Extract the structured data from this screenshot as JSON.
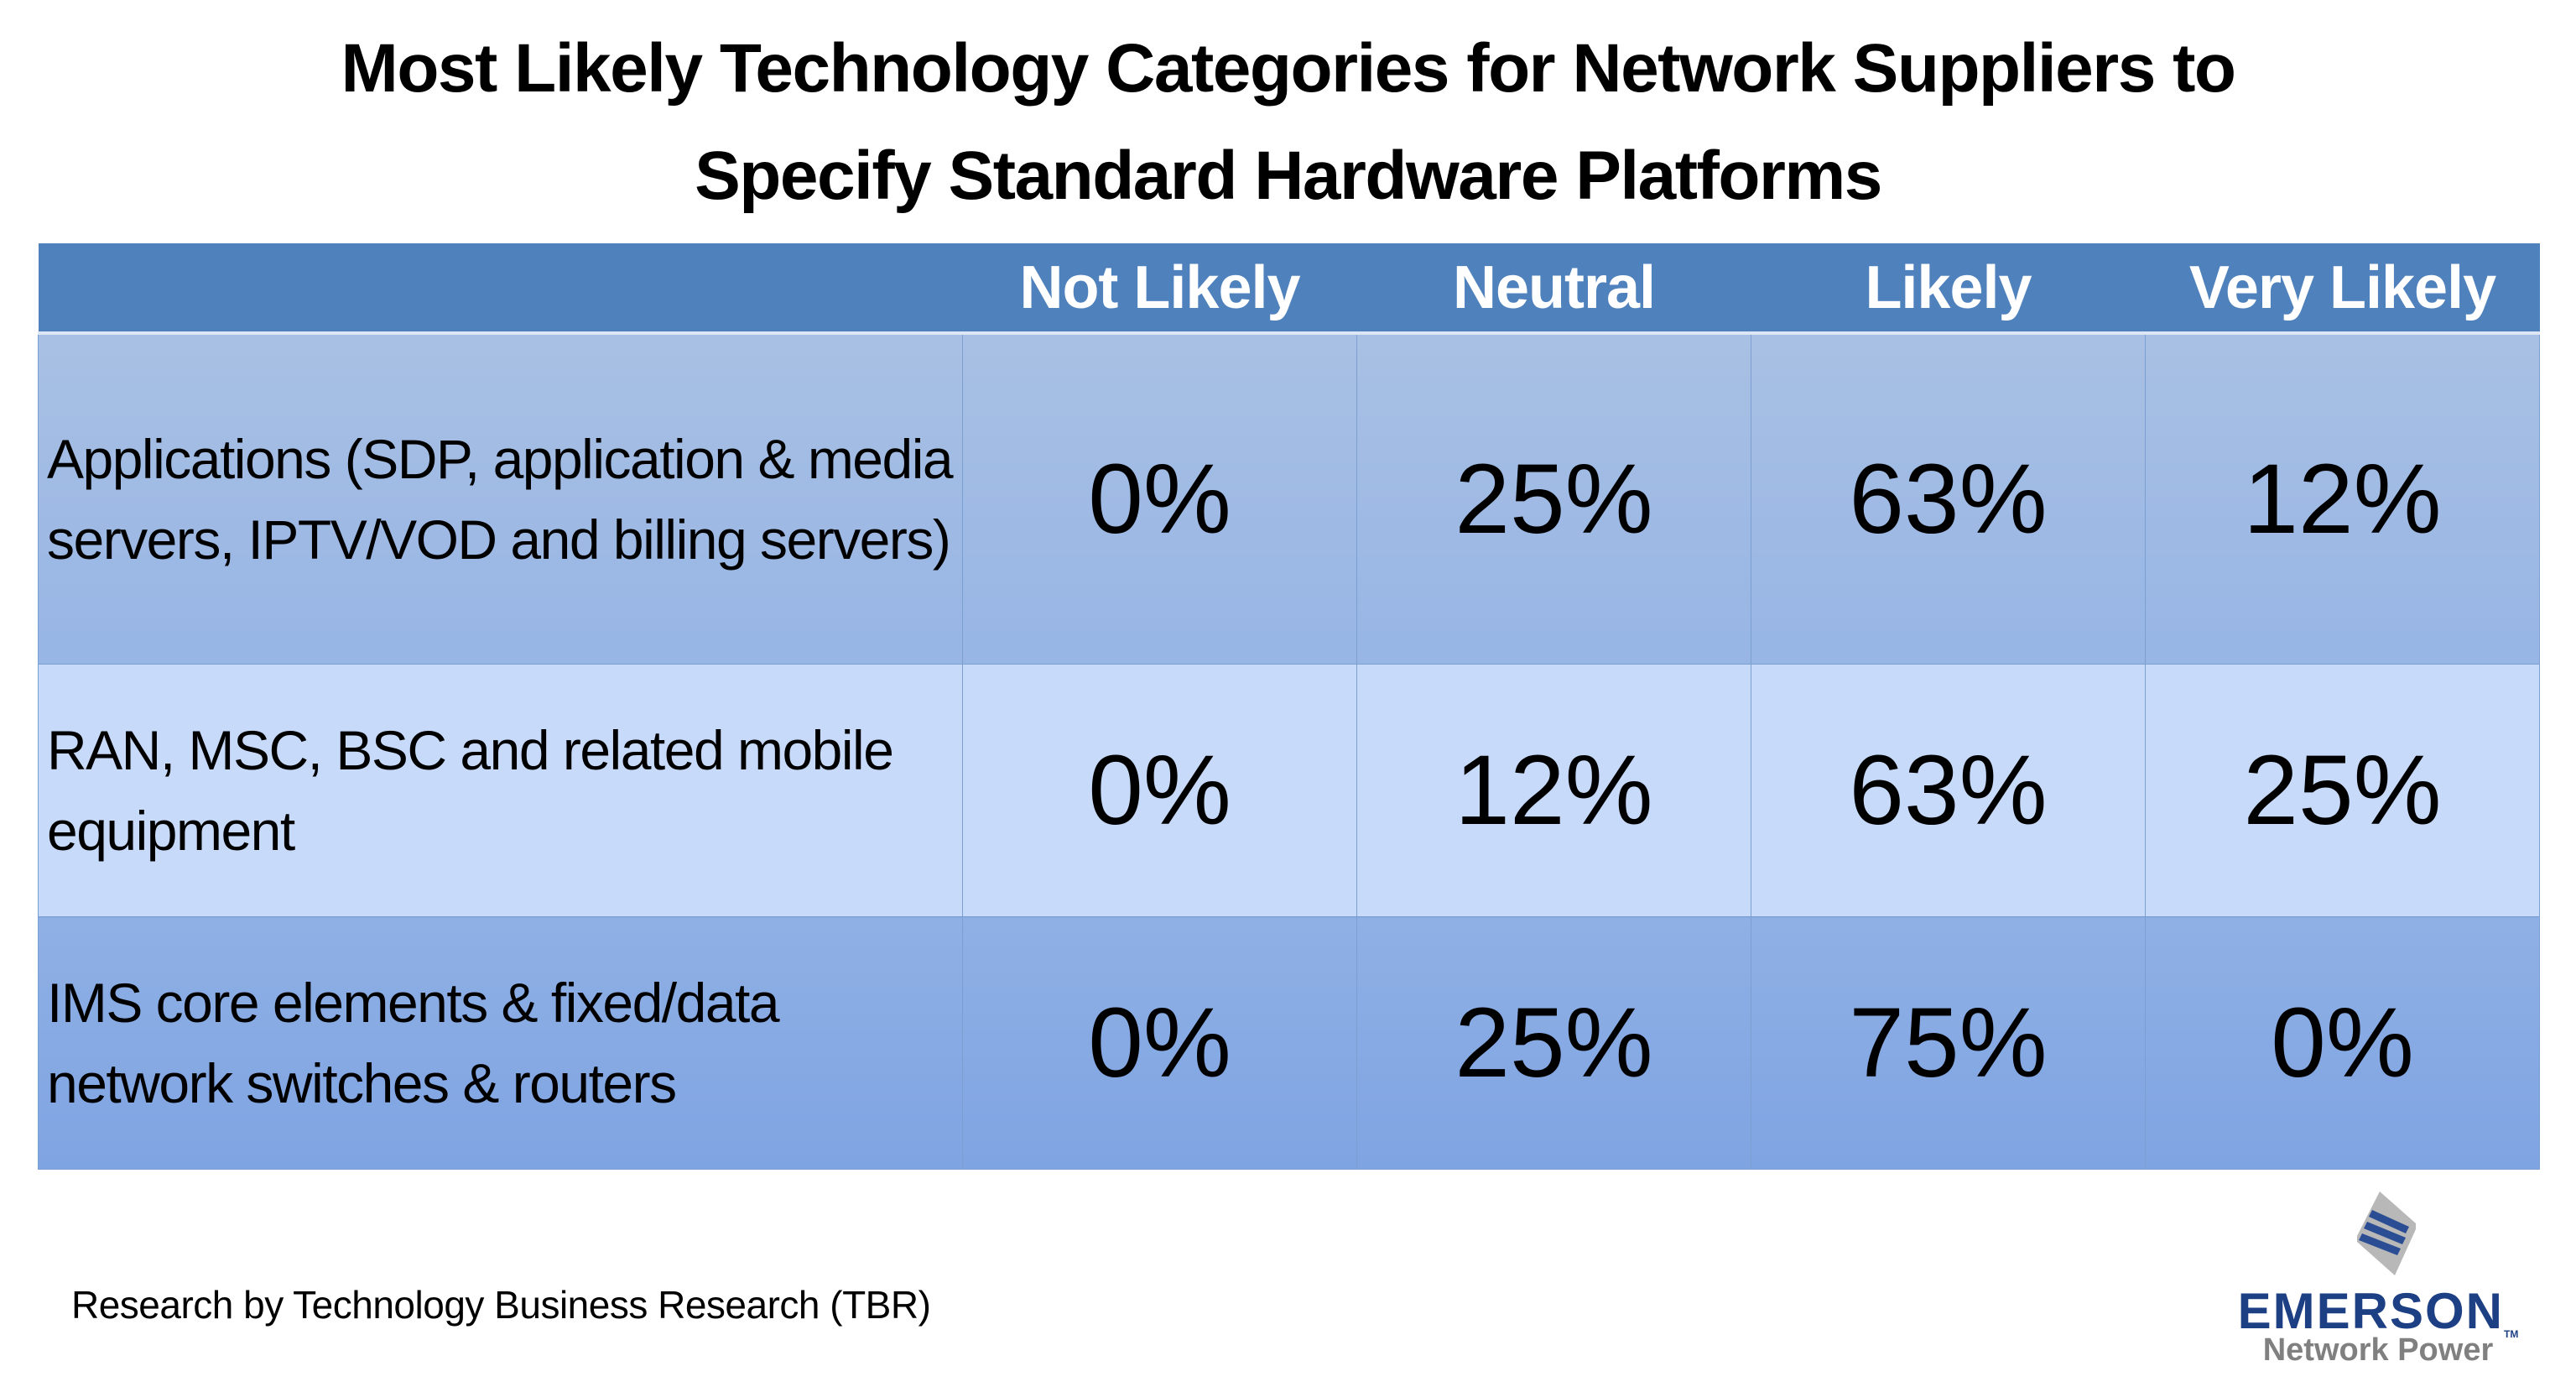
{
  "title": {
    "line1": "Most Likely Technology Categories for Network Suppliers to",
    "line2": "Specify Standard Hardware Platforms"
  },
  "table": {
    "headers": [
      "",
      "Not Likely",
      "Neutral",
      "Likely",
      "Very Likely"
    ],
    "rows": [
      {
        "label": "Applications (SDP, application & media servers, IPTV/VOD and billing servers)",
        "values": [
          "0%",
          "25%",
          "63%",
          "12%"
        ]
      },
      {
        "label": "RAN, MSC, BSC and related mobile equipment",
        "values": [
          "0%",
          "12%",
          "63%",
          "25%"
        ]
      },
      {
        "label": "IMS core elements & fixed/data network switches & routers",
        "values": [
          "0%",
          "25%",
          "75%",
          "0%"
        ]
      }
    ]
  },
  "footer": {
    "source": "Research by Technology Business Research (TBR)"
  },
  "logo": {
    "brand": "EMERSON",
    "tm": "TM",
    "sub": "Network Power"
  },
  "colors": {
    "header": "#4f81bd",
    "row1": "#a8c0e3",
    "row2": "#c8dafa",
    "row3": "#8fb0e5",
    "brand": "#1d3f84"
  }
}
